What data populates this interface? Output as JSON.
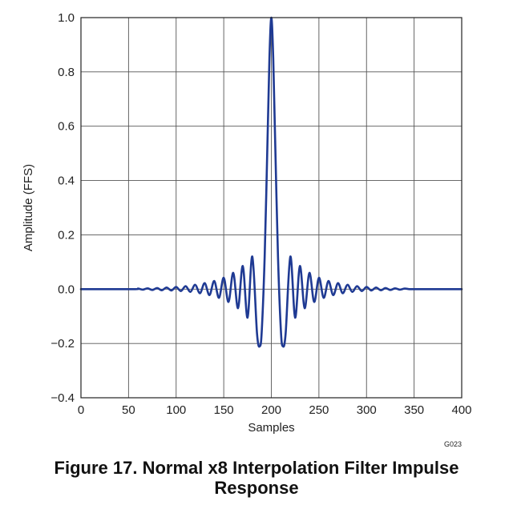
{
  "chart_data": {
    "type": "line",
    "title": "",
    "xlabel": "Samples",
    "ylabel": "Amplitude (FFS)",
    "xlim": [
      0,
      400
    ],
    "ylim": [
      -0.4,
      1.0
    ],
    "xticks": [
      0,
      50,
      100,
      150,
      200,
      250,
      300,
      350,
      400
    ],
    "xtick_labels": [
      "0",
      "50",
      "100",
      "150",
      "200",
      "250",
      "300",
      "350",
      "400"
    ],
    "yticks": [
      -0.4,
      -0.2,
      0.0,
      0.2,
      0.4,
      0.6,
      0.8,
      1.0
    ],
    "ytick_labels": [
      "−0.4",
      "−0.2",
      "0.0",
      "0.2",
      "0.4",
      "0.6",
      "0.8",
      "1.0"
    ],
    "grid": true,
    "series_color": "#1f3a93",
    "series": [
      {
        "x": [
          0,
          55,
          60,
          65,
          70,
          75,
          80,
          85,
          90,
          95,
          100,
          105,
          110,
          115,
          120,
          125,
          130,
          135,
          140,
          145,
          150,
          155,
          160,
          165,
          170,
          175,
          180,
          185,
          188,
          190,
          193,
          196,
          198,
          200,
          202,
          204,
          207,
          210,
          212,
          215,
          220,
          225,
          230,
          235,
          240,
          245,
          250,
          255,
          260,
          265,
          270,
          275,
          280,
          285,
          290,
          295,
          300,
          305,
          310,
          315,
          320,
          325,
          330,
          335,
          340,
          345,
          350,
          400
        ],
        "values": [
          0,
          0,
          0.002,
          -0.002,
          0.003,
          -0.003,
          0.004,
          -0.004,
          0.006,
          -0.005,
          0.008,
          -0.007,
          0.011,
          -0.01,
          0.016,
          -0.015,
          0.022,
          -0.022,
          0.03,
          -0.032,
          0.042,
          -0.047,
          0.06,
          -0.07,
          0.085,
          -0.105,
          0.12,
          -0.165,
          -0.21,
          -0.15,
          0.12,
          0.55,
          0.85,
          1.0,
          0.85,
          0.55,
          0.12,
          -0.15,
          -0.21,
          -0.165,
          0.12,
          -0.105,
          0.085,
          -0.07,
          0.06,
          -0.047,
          0.042,
          -0.032,
          0.03,
          -0.022,
          0.022,
          -0.015,
          0.016,
          -0.01,
          0.011,
          -0.007,
          0.008,
          -0.005,
          0.006,
          -0.004,
          0.004,
          -0.003,
          0.003,
          -0.002,
          0.002,
          0,
          0,
          0
        ]
      }
    ]
  },
  "figure_code": "G023",
  "caption": {
    "line1": "Figure 17. Normal x8 Interpolation Filter Impulse",
    "line2": "Response"
  }
}
